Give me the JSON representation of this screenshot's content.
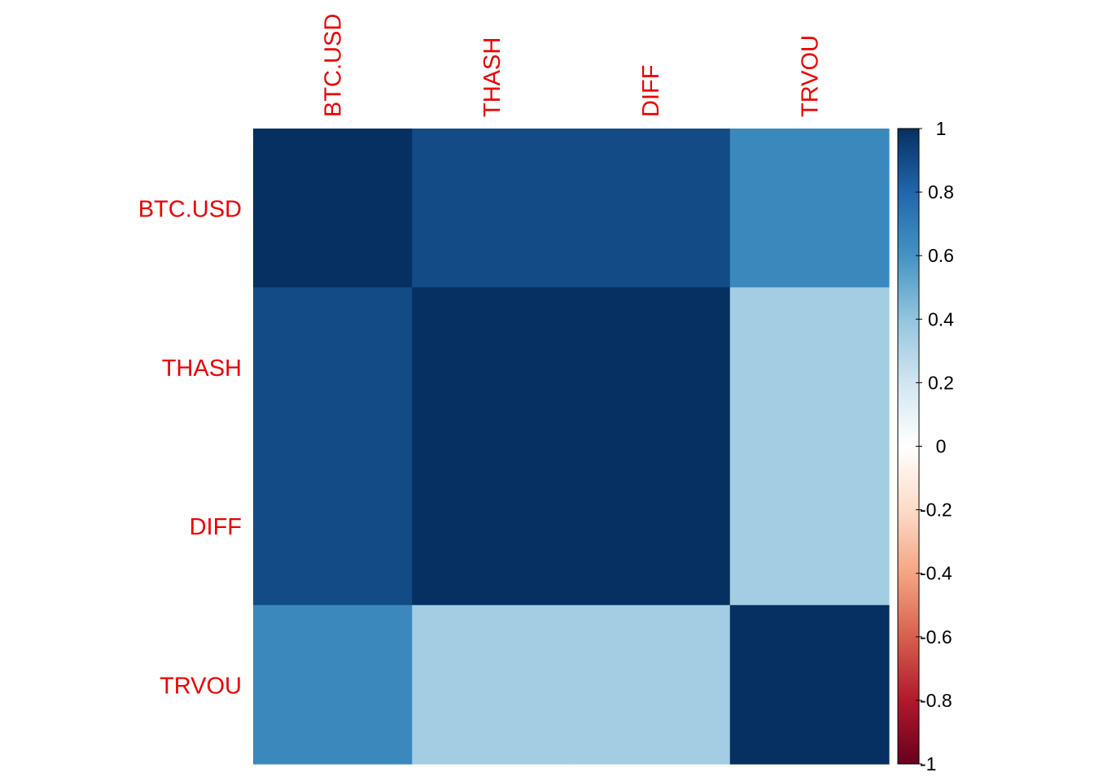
{
  "chart_data": {
    "type": "heatmap",
    "variables": [
      "BTC.USD",
      "THASH",
      "DIFF",
      "TRVOU"
    ],
    "matrix": [
      [
        1.0,
        0.9,
        0.9,
        0.65
      ],
      [
        0.9,
        1.0,
        1.0,
        0.35
      ],
      [
        0.9,
        1.0,
        1.0,
        0.35
      ],
      [
        0.65,
        0.35,
        0.35,
        1.0
      ]
    ],
    "legend": {
      "min": -1,
      "max": 1,
      "ticks": [
        "1",
        "0.8",
        "0.6",
        "0.4",
        "0.2",
        "0",
        "-0.2",
        "-0.4",
        "-0.6",
        "-0.8",
        "-1"
      ],
      "tick_values": [
        1,
        0.8,
        0.6,
        0.4,
        0.2,
        0,
        -0.2,
        -0.4,
        -0.6,
        -0.8,
        -1
      ],
      "placement": "right"
    },
    "colors": {
      "label": "#ee0000",
      "palette": [
        "#67001f",
        "#b2182b",
        "#d6604d",
        "#f4a582",
        "#fddbc7",
        "#ffffff",
        "#d1e5f0",
        "#92c5de",
        "#4393c3",
        "#2166ac",
        "#053061"
      ]
    }
  }
}
